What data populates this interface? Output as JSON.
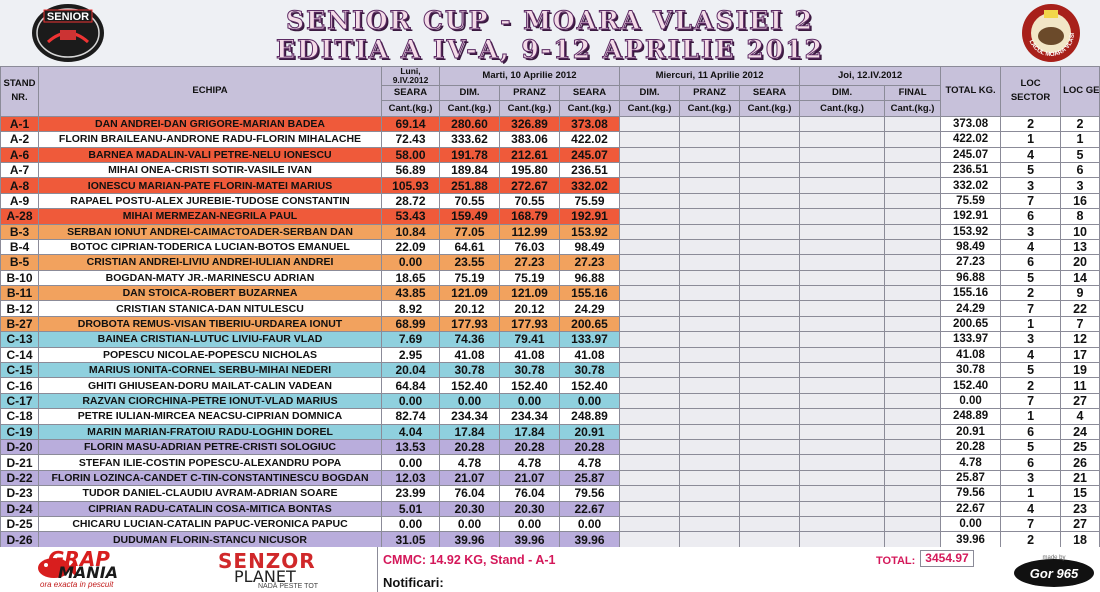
{
  "header": {
    "title_line1": "SENIOR CUP - MOARA VLASIEI 2",
    "title_line2": "EDITIA  A IV-A, 9-12 APRILIE 2012",
    "logo_left_text": "SENIOR",
    "logo_right_text": "LACUL MOARA VLASIEI"
  },
  "columns": {
    "stand": "STAND NR.",
    "team": "ECHIPA",
    "day1": "Luni, 9.IV.2012",
    "day2": "Marti, 10 Aprilie 2012",
    "day3": "Miercuri, 11 Aprilie 2012",
    "day4": "Joi, 12.IV.2012",
    "seara": "SEARA",
    "dim": "DIM.",
    "pranz": "PRANZ",
    "final": "FINAL",
    "cant": "Cant.(kg.)",
    "total": "TOTAL KG.",
    "loc_sector": "LOC SECTOR",
    "loc_gen": "LOC GEN."
  },
  "rows": [
    {
      "stand": "A-1",
      "team": "DAN ANDREI-DAN GRIGORE-MARIAN BADEA",
      "seara1": "69.14",
      "dim2": "280.60",
      "pranz2": "326.89",
      "seara2": "373.08",
      "total": "373.08",
      "loc_sector": "2",
      "loc_gen": "2",
      "band": "red"
    },
    {
      "stand": "A-2",
      "team": "FLORIN BRAILEANU-ANDRONE RADU-FLORIN MIHALACHE",
      "seara1": "72.43",
      "dim2": "333.62",
      "pranz2": "383.06",
      "seara2": "422.02",
      "total": "422.02",
      "loc_sector": "1",
      "loc_gen": "1",
      "band": "white"
    },
    {
      "stand": "A-6",
      "team": "BARNEA MADALIN-VALI PETRE-NELU IONESCU",
      "seara1": "58.00",
      "dim2": "191.78",
      "pranz2": "212.61",
      "seara2": "245.07",
      "total": "245.07",
      "loc_sector": "4",
      "loc_gen": "5",
      "band": "red"
    },
    {
      "stand": "A-7",
      "team": "MIHAI ONEA-CRISTI SOTIR-VASILE IVAN",
      "seara1": "56.89",
      "dim2": "189.84",
      "pranz2": "195.80",
      "seara2": "236.51",
      "total": "236.51",
      "loc_sector": "5",
      "loc_gen": "6",
      "band": "white"
    },
    {
      "stand": "A-8",
      "team": "IONESCU MARIAN-PATE FLORIN-MATEI MARIUS",
      "seara1": "105.93",
      "dim2": "251.88",
      "pranz2": "272.67",
      "seara2": "332.02",
      "total": "332.02",
      "loc_sector": "3",
      "loc_gen": "3",
      "band": "red"
    },
    {
      "stand": "A-9",
      "team": "RAPAEL POSTU-ALEX JUREBIE-TUDOSE CONSTANTIN",
      "seara1": "28.72",
      "dim2": "70.55",
      "pranz2": "70.55",
      "seara2": "75.59",
      "total": "75.59",
      "loc_sector": "7",
      "loc_gen": "16",
      "band": "white"
    },
    {
      "stand": "A-28",
      "team": "MIHAI MERMEZAN-NEGRILA PAUL",
      "seara1": "53.43",
      "dim2": "159.49",
      "pranz2": "168.79",
      "seara2": "192.91",
      "total": "192.91",
      "loc_sector": "6",
      "loc_gen": "8",
      "band": "red"
    },
    {
      "stand": "B-3",
      "team": "SERBAN IONUT ANDREI-CAIMACTOADER-SERBAN DAN",
      "seara1": "10.84",
      "dim2": "77.05",
      "pranz2": "112.99",
      "seara2": "153.92",
      "total": "153.92",
      "loc_sector": "3",
      "loc_gen": "10",
      "band": "orange"
    },
    {
      "stand": "B-4",
      "team": "BOTOC CIPRIAN-TODERICA LUCIAN-BOTOS EMANUEL",
      "seara1": "22.09",
      "dim2": "64.61",
      "pranz2": "76.03",
      "seara2": "98.49",
      "total": "98.49",
      "loc_sector": "4",
      "loc_gen": "13",
      "band": "white"
    },
    {
      "stand": "B-5",
      "team": "CRISTIAN ANDREI-LIVIU ANDREI-IULIAN ANDREI",
      "seara1": "0.00",
      "dim2": "23.55",
      "pranz2": "27.23",
      "seara2": "27.23",
      "total": "27.23",
      "loc_sector": "6",
      "loc_gen": "20",
      "band": "orange"
    },
    {
      "stand": "B-10",
      "team": "BOGDAN-MATY JR.-MARINESCU ADRIAN",
      "seara1": "18.65",
      "dim2": "75.19",
      "pranz2": "75.19",
      "seara2": "96.88",
      "total": "96.88",
      "loc_sector": "5",
      "loc_gen": "14",
      "band": "white"
    },
    {
      "stand": "B-11",
      "team": "DAN STOICA-ROBERT BUZARNEA",
      "seara1": "43.85",
      "dim2": "121.09",
      "pranz2": "121.09",
      "seara2": "155.16",
      "total": "155.16",
      "loc_sector": "2",
      "loc_gen": "9",
      "band": "orange"
    },
    {
      "stand": "B-12",
      "team": "CRISTIAN STANICA-DAN NITULESCU",
      "seara1": "8.92",
      "dim2": "20.12",
      "pranz2": "20.12",
      "seara2": "24.29",
      "total": "24.29",
      "loc_sector": "7",
      "loc_gen": "22",
      "band": "white"
    },
    {
      "stand": "B-27",
      "team": "DROBOTA REMUS-VISAN TIBERIU-URDAREA IONUT",
      "seara1": "68.99",
      "dim2": "177.93",
      "pranz2": "177.93",
      "seara2": "200.65",
      "total": "200.65",
      "loc_sector": "1",
      "loc_gen": "7",
      "band": "orange"
    },
    {
      "stand": "C-13",
      "team": "BAINEA CRISTIAN-LUTUC LIVIU-FAUR VLAD",
      "seara1": "7.69",
      "dim2": "74.36",
      "pranz2": "79.41",
      "seara2": "133.97",
      "total": "133.97",
      "loc_sector": "3",
      "loc_gen": "12",
      "band": "cyan"
    },
    {
      "stand": "C-14",
      "team": "POPESCU NICOLAE-POPESCU NICHOLAS",
      "seara1": "2.95",
      "dim2": "41.08",
      "pranz2": "41.08",
      "seara2": "41.08",
      "total": "41.08",
      "loc_sector": "4",
      "loc_gen": "17",
      "band": "white"
    },
    {
      "stand": "C-15",
      "team": "MARIUS IONITA-CORNEL SERBU-MIHAI NEDERI",
      "seara1": "20.04",
      "dim2": "30.78",
      "pranz2": "30.78",
      "seara2": "30.78",
      "total": "30.78",
      "loc_sector": "5",
      "loc_gen": "19",
      "band": "cyan"
    },
    {
      "stand": "C-16",
      "team": "GHITI GHIUSEAN-DORU MAILAT-CALIN VADEAN",
      "seara1": "64.84",
      "dim2": "152.40",
      "pranz2": "152.40",
      "seara2": "152.40",
      "total": "152.40",
      "loc_sector": "2",
      "loc_gen": "11",
      "band": "white"
    },
    {
      "stand": "C-17",
      "team": "RAZVAN CIORCHINA-PETRE IONUT-VLAD MARIUS",
      "seara1": "0.00",
      "dim2": "0.00",
      "pranz2": "0.00",
      "seara2": "0.00",
      "total": "0.00",
      "loc_sector": "7",
      "loc_gen": "27",
      "band": "cyan"
    },
    {
      "stand": "C-18",
      "team": "PETRE IULIAN-MIRCEA NEACSU-CIPRIAN DOMNICA",
      "seara1": "82.74",
      "dim2": "234.34",
      "pranz2": "234.34",
      "seara2": "248.89",
      "total": "248.89",
      "loc_sector": "1",
      "loc_gen": "4",
      "band": "white"
    },
    {
      "stand": "C-19",
      "team": "MARIN MARIAN-FRATOIU RADU-LOGHIN DOREL",
      "seara1": "4.04",
      "dim2": "17.84",
      "pranz2": "17.84",
      "seara2": "20.91",
      "total": "20.91",
      "loc_sector": "6",
      "loc_gen": "24",
      "band": "cyan"
    },
    {
      "stand": "D-20",
      "team": "FLORIN MASU-ADRIAN PETRE-CRISTI SOLOGIUC",
      "seara1": "13.53",
      "dim2": "20.28",
      "pranz2": "20.28",
      "seara2": "20.28",
      "total": "20.28",
      "loc_sector": "5",
      "loc_gen": "25",
      "band": "lav"
    },
    {
      "stand": "D-21",
      "team": "STEFAN ILIE-COSTIN POPESCU-ALEXANDRU POPA",
      "seara1": "0.00",
      "dim2": "4.78",
      "pranz2": "4.78",
      "seara2": "4.78",
      "total": "4.78",
      "loc_sector": "6",
      "loc_gen": "26",
      "band": "white"
    },
    {
      "stand": "D-22",
      "team": "FLORIN LOZINCA-CANDET C-TIN-CONSTANTINESCU BOGDAN",
      "seara1": "12.03",
      "dim2": "21.07",
      "pranz2": "21.07",
      "seara2": "25.87",
      "total": "25.87",
      "loc_sector": "3",
      "loc_gen": "21",
      "band": "lav"
    },
    {
      "stand": "D-23",
      "team": "TUDOR DANIEL-CLAUDIU AVRAM-ADRIAN SOARE",
      "seara1": "23.99",
      "dim2": "76.04",
      "pranz2": "76.04",
      "seara2": "79.56",
      "total": "79.56",
      "loc_sector": "1",
      "loc_gen": "15",
      "band": "white"
    },
    {
      "stand": "D-24",
      "team": "CIPRIAN RADU-CATALIN COSA-MITICA BONTAS",
      "seara1": "5.01",
      "dim2": "20.30",
      "pranz2": "20.30",
      "seara2": "22.67",
      "total": "22.67",
      "loc_sector": "4",
      "loc_gen": "23",
      "band": "lav"
    },
    {
      "stand": "D-25",
      "team": "CHICARU LUCIAN-CATALIN PAPUC-VERONICA PAPUC",
      "seara1": "0.00",
      "dim2": "0.00",
      "pranz2": "0.00",
      "seara2": "0.00",
      "total": "0.00",
      "loc_sector": "7",
      "loc_gen": "27",
      "band": "white"
    },
    {
      "stand": "D-26",
      "team": "DUDUMAN FLORIN-STANCU NICUSOR",
      "seara1": "31.05",
      "dim2": "39.96",
      "pranz2": "39.96",
      "seara2": "39.96",
      "total": "39.96",
      "loc_sector": "2",
      "loc_gen": "18",
      "band": "lav"
    }
  ],
  "footer": {
    "sponsor1_word1": "GRAP",
    "sponsor1_word2": "MANIA",
    "sponsor1_tag": "ora exacta in pescuit",
    "sponsor2_word1": "SENZOR",
    "sponsor2_word2": "PLANET",
    "sponsor2_tag": "NADĂ PESTE TOT",
    "cmmc": "CMMC: 14.92 KG, Stand - A-1",
    "notificari": "Notificari:",
    "total_label": "TOTAL:",
    "total_value": "3454.97",
    "gor_text": "Gor 965",
    "gor_small": "made by"
  },
  "colors": {
    "red": "#ef5a3a",
    "orange": "#f2a25e",
    "cyan": "#8fd0de",
    "lavender": "#b9addc",
    "header": "#c7c1da",
    "accent": "#d4185a"
  }
}
